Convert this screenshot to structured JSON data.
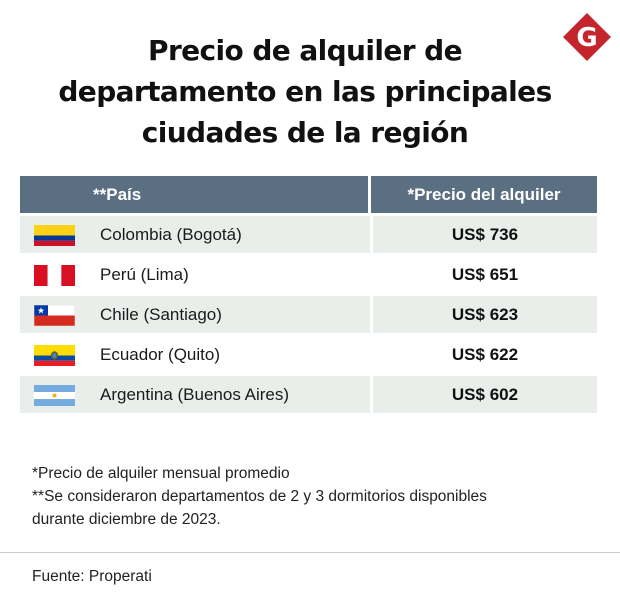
{
  "title": {
    "line1": "Precio de alquiler de",
    "line2": "departamento en las principales",
    "line3": "ciudades de la región"
  },
  "logo": {
    "letter": "G",
    "color": "#c4252d"
  },
  "table": {
    "header": {
      "country": "**País",
      "price": "*Precio del alquiler"
    },
    "header_color": "#5b6f82",
    "stripe_color": "#e9eeea",
    "rows": [
      {
        "flag": "colombia-flag-icon",
        "city": "Colombia (Bogotá)",
        "price": "US$ 736"
      },
      {
        "flag": "peru-flag-icon",
        "city": "Perú (Lima)",
        "price": "US$ 651"
      },
      {
        "flag": "chile-flag-icon",
        "city": "Chile (Santiago)",
        "price": "US$ 623"
      },
      {
        "flag": "ecuador-flag-icon",
        "city": "Ecuador (Quito)",
        "price": "US$ 622"
      },
      {
        "flag": "argentina-flag-icon",
        "city": "Argentina (Buenos Aires)",
        "price": "US$ 602"
      }
    ]
  },
  "notes": {
    "note1": "*Precio de alquiler mensual promedio",
    "note2_line1": "**Se consideraron departamentos de 2 y 3 dormitorios disponibles",
    "note2_line2": "durante diciembre de 2023."
  },
  "source": "Fuente: Properati"
}
